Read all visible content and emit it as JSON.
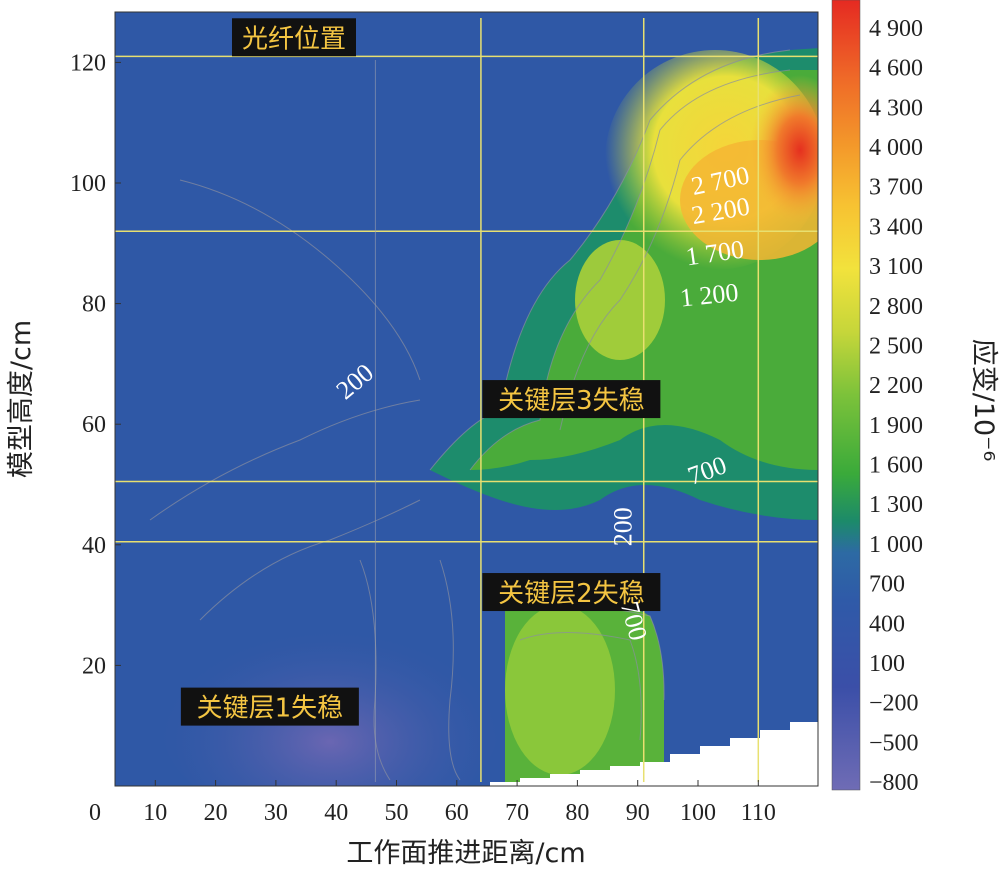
{
  "chart_data": {
    "type": "heatmap",
    "xlabel": "工作面推进距离/cm",
    "ylabel": "模型高度/cm",
    "colorbar_label": "应变/10⁻⁶",
    "xlim": [
      0,
      120
    ],
    "ylim": [
      0,
      130
    ],
    "x_ticks": [
      "0",
      "10",
      "20",
      "30",
      "40",
      "50",
      "60",
      "70",
      "80",
      "90",
      "100",
      "110"
    ],
    "y_ticks": [
      "20",
      "40",
      "60",
      "80",
      "100",
      "120"
    ],
    "colorbar_ticks": [
      "4 900",
      "4 600",
      "4 300",
      "4 000",
      "3 700",
      "3 400",
      "3 100",
      "2 800",
      "2 500",
      "2 200",
      "1 900",
      "1 600",
      "1 300",
      "1 000",
      "700",
      "400",
      "100",
      "−200",
      "−500",
      "−800"
    ],
    "colorbar_range": [
      -800,
      4900
    ],
    "fiber_lines_y": [
      121,
      92,
      50.5,
      40.5
    ],
    "vertical_lines_x": [
      64,
      91,
      110
    ],
    "annotations": [
      {
        "text": "光纤位置",
        "x": 33,
        "y": 124
      },
      {
        "text": "关键层3失稳",
        "x": 79,
        "y": 64
      },
      {
        "text": "关键层2失稳",
        "x": 79,
        "y": 32
      },
      {
        "text": "关键层1失稳",
        "x": 29,
        "y": 13
      }
    ],
    "contour_labels": [
      {
        "text": "200",
        "x": 44,
        "y": 66
      },
      {
        "text": "2 700",
        "x": 104,
        "y": 99
      },
      {
        "text": "2 200",
        "x": 104,
        "y": 94
      },
      {
        "text": "1 700",
        "x": 103,
        "y": 87
      },
      {
        "text": "1 200",
        "x": 102,
        "y": 80
      },
      {
        "text": "700",
        "x": 102,
        "y": 51
      },
      {
        "text": "200",
        "x": 89,
        "y": 43
      },
      {
        "text": "700",
        "x": 88,
        "y": 27
      }
    ],
    "regions": [
      {
        "name": "background",
        "value": 500
      },
      {
        "name": "lower-left-low",
        "value": -500
      },
      {
        "name": "lower-middle-high",
        "value": 2200
      },
      {
        "name": "middle-right-band",
        "value": 1800
      },
      {
        "name": "upper-right-high",
        "value": 3000
      },
      {
        "name": "peak",
        "value": 4900
      }
    ]
  }
}
